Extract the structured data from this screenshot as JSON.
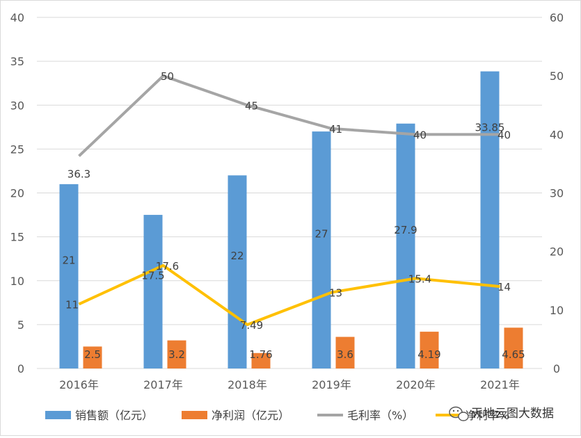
{
  "chart_data": {
    "type": "bar",
    "categories": [
      "2016年",
      "2017年",
      "2018年",
      "2019年",
      "2020年",
      "2021年"
    ],
    "series": [
      {
        "name": "销售额（亿元）",
        "type": "bar",
        "axis": "left",
        "color": "#5b9bd5",
        "values": [
          21,
          17.5,
          22,
          27,
          27.9,
          33.85
        ]
      },
      {
        "name": "净利润（亿元）",
        "type": "bar",
        "axis": "left",
        "color": "#ed7d31",
        "values": [
          2.5,
          3.2,
          1.76,
          3.6,
          4.19,
          4.65
        ]
      },
      {
        "name": "毛利率（%）",
        "type": "line",
        "axis": "right",
        "color": "#a5a5a5",
        "values": [
          36.3,
          50,
          45,
          41,
          40,
          40
        ]
      },
      {
        "name": "净利率%",
        "type": "line",
        "axis": "right",
        "color": "#ffc000",
        "values": [
          11,
          17.6,
          7.49,
          13,
          15.4,
          14
        ]
      }
    ],
    "ylim": [
      0,
      40
    ],
    "yticks": [
      0,
      5,
      10,
      15,
      20,
      25,
      30,
      35,
      40
    ],
    "y2lim": [
      0,
      60
    ],
    "y2ticks": [
      0,
      10,
      20,
      30,
      40,
      50,
      60
    ],
    "grid": true,
    "legend": "bottom",
    "value_labels": {
      "bar0": [
        "21",
        "17.5",
        "22",
        "27",
        "27.9",
        "33.85"
      ],
      "bar1": [
        "2.5",
        "3.2",
        "1.76",
        "3.6",
        "4.19",
        "4.65"
      ],
      "line0": [
        "36.3",
        "50",
        "45",
        "41",
        "40",
        "40"
      ],
      "line1": [
        "11",
        "17.6",
        "7.49",
        "13",
        "15.4",
        "14"
      ]
    }
  },
  "watermark": {
    "text": "天地云图大数据",
    "icon": "wechat-icon"
  }
}
